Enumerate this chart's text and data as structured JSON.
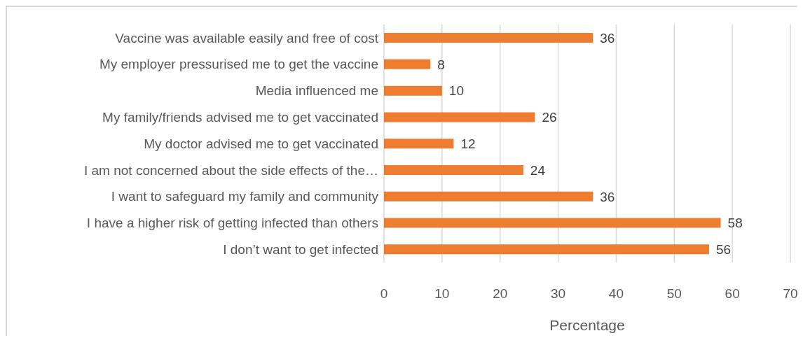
{
  "chart_data": {
    "type": "bar",
    "orientation": "horizontal",
    "xlabel": "Percentage",
    "categories": [
      "Vaccine was available easily and free of cost",
      "My employer pressurised me to get the vaccine",
      "Media influenced me",
      "My family/friends advised me to get vaccinated",
      "My doctor advised me to get vaccinated",
      "I am not concerned about the side effects of the…",
      "I want to safeguard my family and community",
      "I have a higher risk of getting infected than others",
      "I don’t want to get infected"
    ],
    "values": [
      36,
      8,
      10,
      26,
      12,
      24,
      36,
      58,
      56
    ],
    "color": "#ed7d31",
    "xlim": [
      0,
      70
    ],
    "xticks": [
      0,
      10,
      20,
      30,
      40,
      50,
      60,
      70
    ],
    "grid": "x",
    "data_labels": true,
    "legend": false
  }
}
